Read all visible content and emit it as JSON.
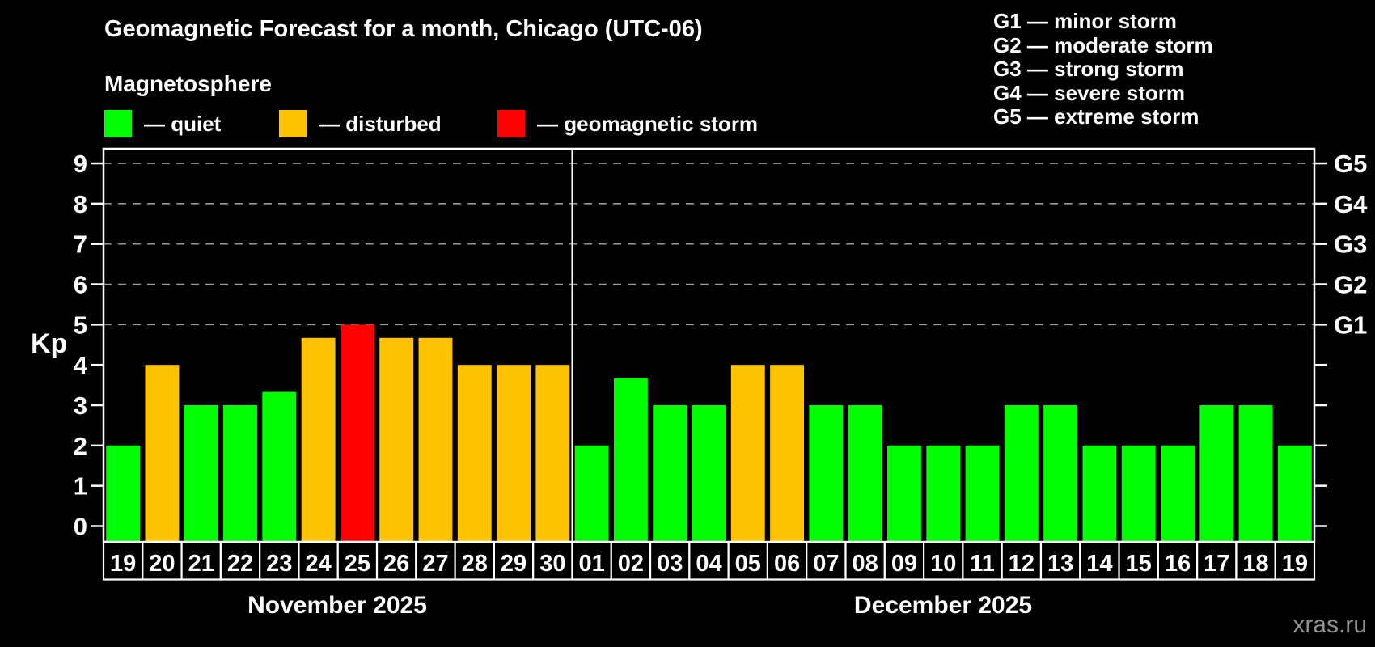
{
  "header": {
    "title": "Geomagnetic Forecast for a month, Chicago (UTC-06)",
    "subtitle": "Magnetosphere"
  },
  "legend": {
    "items": [
      {
        "key": "quiet",
        "label": "— quiet"
      },
      {
        "key": "disturbed",
        "label": "— disturbed"
      },
      {
        "key": "storm",
        "label": "— geomagnetic storm"
      }
    ]
  },
  "g_legend": {
    "items": [
      {
        "label": "G1 — minor storm"
      },
      {
        "label": "G2 — moderate storm"
      },
      {
        "label": "G3 — strong storm"
      },
      {
        "label": "G4 — severe storm"
      },
      {
        "label": "G5 — extreme storm"
      }
    ]
  },
  "colors": {
    "quiet": "#00ff00",
    "disturbed": "#ffc200",
    "storm": "#ff0000",
    "axis": "#ffffff",
    "grid": "#999999",
    "watermark": "#909090"
  },
  "chart_data": {
    "type": "bar",
    "ylabel": "Kp",
    "ylim": [
      0,
      9
    ],
    "y_ticks": [
      0,
      1,
      2,
      3,
      4,
      5,
      6,
      7,
      8,
      9
    ],
    "grid_levels": [
      5,
      6,
      7,
      8,
      9
    ],
    "right_axis": [
      {
        "kp": 5,
        "label": "G1"
      },
      {
        "kp": 6,
        "label": "G2"
      },
      {
        "kp": 7,
        "label": "G3"
      },
      {
        "kp": 8,
        "label": "G4"
      },
      {
        "kp": 9,
        "label": "G5"
      }
    ],
    "months": [
      {
        "label": "November 2025",
        "bars": [
          {
            "day": "19",
            "value": 2,
            "status": "quiet"
          },
          {
            "day": "20",
            "value": 4,
            "status": "disturbed"
          },
          {
            "day": "21",
            "value": 3,
            "status": "quiet"
          },
          {
            "day": "22",
            "value": 3,
            "status": "quiet"
          },
          {
            "day": "23",
            "value": 3.33,
            "status": "quiet"
          },
          {
            "day": "24",
            "value": 4.67,
            "status": "disturbed"
          },
          {
            "day": "25",
            "value": 5,
            "status": "storm"
          },
          {
            "day": "26",
            "value": 4.67,
            "status": "disturbed"
          },
          {
            "day": "27",
            "value": 4.67,
            "status": "disturbed"
          },
          {
            "day": "28",
            "value": 4,
            "status": "disturbed"
          },
          {
            "day": "29",
            "value": 4,
            "status": "disturbed"
          },
          {
            "day": "30",
            "value": 4,
            "status": "disturbed"
          }
        ]
      },
      {
        "label": "December 2025",
        "bars": [
          {
            "day": "01",
            "value": 2,
            "status": "quiet"
          },
          {
            "day": "02",
            "value": 3.67,
            "status": "quiet"
          },
          {
            "day": "03",
            "value": 3,
            "status": "quiet"
          },
          {
            "day": "04",
            "value": 3,
            "status": "quiet"
          },
          {
            "day": "05",
            "value": 4,
            "status": "disturbed"
          },
          {
            "day": "06",
            "value": 4,
            "status": "disturbed"
          },
          {
            "day": "07",
            "value": 3,
            "status": "quiet"
          },
          {
            "day": "08",
            "value": 3,
            "status": "quiet"
          },
          {
            "day": "09",
            "value": 2,
            "status": "quiet"
          },
          {
            "day": "10",
            "value": 2,
            "status": "quiet"
          },
          {
            "day": "11",
            "value": 2,
            "status": "quiet"
          },
          {
            "day": "12",
            "value": 3,
            "status": "quiet"
          },
          {
            "day": "13",
            "value": 3,
            "status": "quiet"
          },
          {
            "day": "14",
            "value": 2,
            "status": "quiet"
          },
          {
            "day": "15",
            "value": 2,
            "status": "quiet"
          },
          {
            "day": "16",
            "value": 2,
            "status": "quiet"
          },
          {
            "day": "17",
            "value": 3,
            "status": "quiet"
          },
          {
            "day": "18",
            "value": 3,
            "status": "quiet"
          },
          {
            "day": "19",
            "value": 2,
            "status": "quiet"
          }
        ]
      }
    ]
  },
  "watermark": "xras.ru"
}
